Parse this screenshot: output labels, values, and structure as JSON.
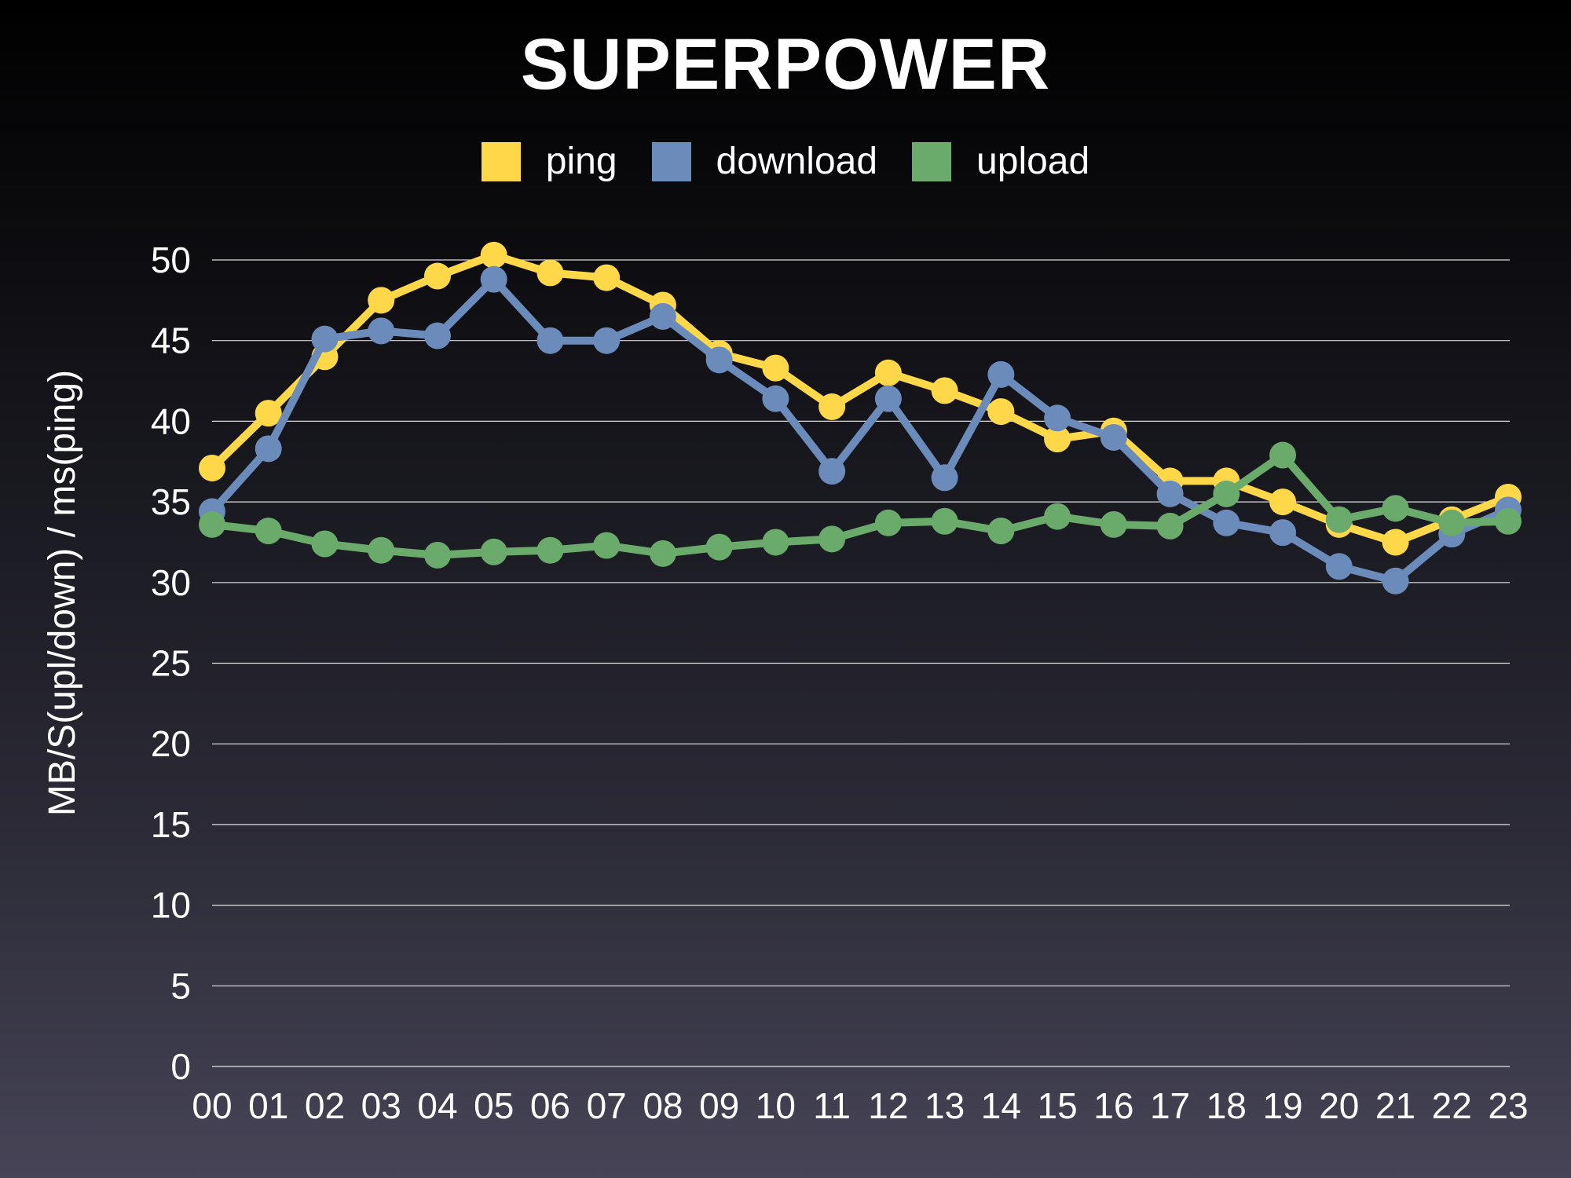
{
  "chart_data": {
    "type": "line",
    "title": "SUPERPOWER",
    "xlabel": "",
    "ylabel": "MB/S(upl/down) / ms(ping)",
    "categories": [
      "00",
      "01",
      "02",
      "03",
      "04",
      "05",
      "06",
      "07",
      "08",
      "09",
      "10",
      "11",
      "12",
      "13",
      "14",
      "15",
      "16",
      "17",
      "18",
      "19",
      "20",
      "21",
      "22",
      "23"
    ],
    "ylim": [
      0,
      50
    ],
    "yticks": [
      0,
      5,
      10,
      15,
      20,
      25,
      30,
      35,
      40,
      45,
      50
    ],
    "grid": true,
    "legend_position": "top-center",
    "series": [
      {
        "name": "ping",
        "color": "#FFD84A",
        "values": [
          37.1,
          40.5,
          44.0,
          47.5,
          49.0,
          50.3,
          49.2,
          48.9,
          47.2,
          44.2,
          43.3,
          40.9,
          43.0,
          41.9,
          40.6,
          38.9,
          39.4,
          36.3,
          36.3,
          35.0,
          33.6,
          32.5,
          33.9,
          35.3
        ]
      },
      {
        "name": "download",
        "color": "#6B8BBB",
        "values": [
          34.4,
          38.3,
          45.1,
          45.6,
          45.3,
          48.8,
          45.0,
          45.0,
          46.5,
          43.8,
          41.4,
          36.9,
          41.4,
          36.5,
          42.9,
          40.2,
          39.0,
          35.5,
          33.7,
          33.1,
          31.0,
          30.1,
          33.0,
          34.5
        ]
      },
      {
        "name": "upload",
        "color": "#6AAA6A",
        "values": [
          33.6,
          33.2,
          32.4,
          32.0,
          31.7,
          31.9,
          32.0,
          32.3,
          31.8,
          32.2,
          32.5,
          32.7,
          33.7,
          33.8,
          33.2,
          34.1,
          33.6,
          33.5,
          35.5,
          37.9,
          33.9,
          34.6,
          33.7,
          33.8
        ]
      }
    ]
  }
}
